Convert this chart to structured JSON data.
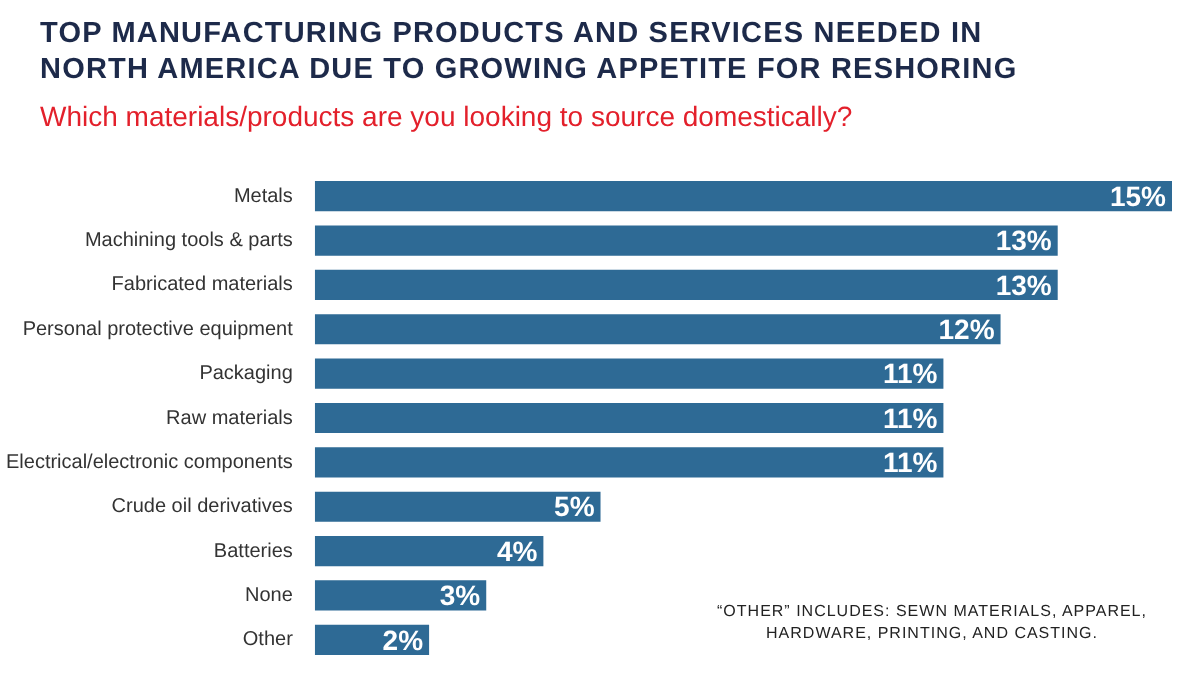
{
  "chart_data": {
    "type": "bar",
    "orientation": "horizontal",
    "title": "TOP MANUFACTURING PRODUCTS AND SERVICES NEEDED IN NORTH AMERICA DUE TO GROWING APPETITE FOR RESHORING",
    "subtitle": "Which materials/products are you looking to source domestically?",
    "categories": [
      "Metals",
      "Machining tools & parts",
      "Fabricated materials",
      "Personal protective equipment",
      "Packaging",
      "Raw materials",
      "Electrical/electronic components",
      "Crude oil derivatives",
      "Batteries",
      "None",
      "Other"
    ],
    "values": [
      15,
      13,
      13,
      12,
      11,
      11,
      11,
      5,
      4,
      3,
      2
    ],
    "value_labels": [
      "15%",
      "13%",
      "13%",
      "12%",
      "11%",
      "11%",
      "11%",
      "5%",
      "4%",
      "3%",
      "2%"
    ],
    "color": "#2e6a95",
    "annotations": [
      "“OTHER” INCLUDES: SEWN MATERIALS, APPAREL, HARDWARE, PRINTING, AND CASTING."
    ]
  }
}
